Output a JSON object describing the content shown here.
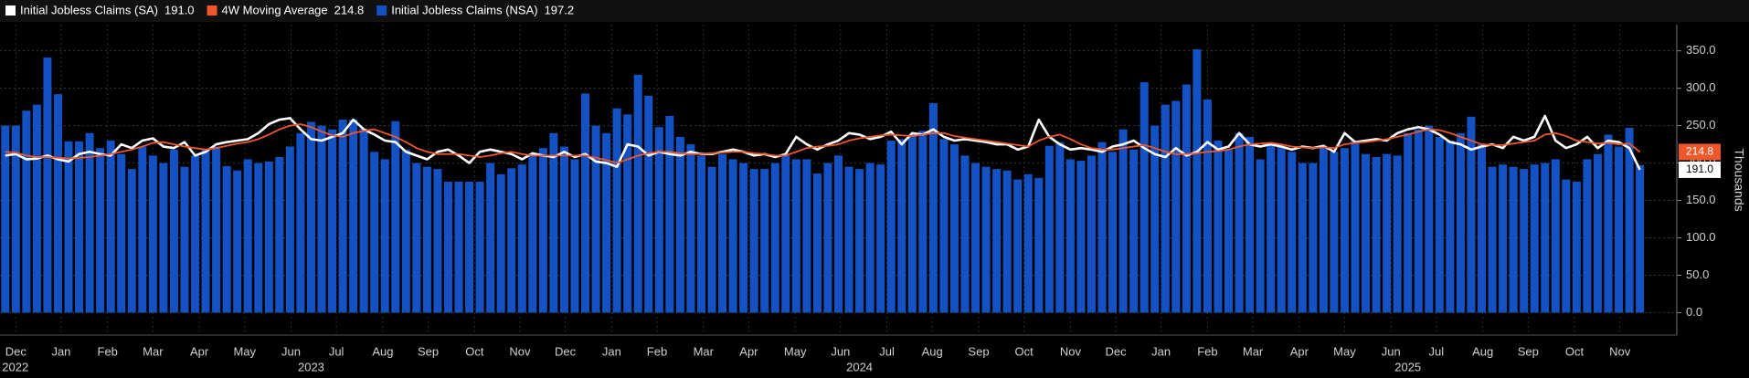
{
  "chart_data": {
    "type": "bar",
    "y_axis_label": "Thousands",
    "ylim": [
      -30,
      385
    ],
    "yticks": [
      {
        "value": 0,
        "label": "0.0"
      },
      {
        "value": 50,
        "label": "50.0"
      },
      {
        "value": 100,
        "label": "100.0"
      },
      {
        "value": 150,
        "label": "150.0"
      },
      {
        "value": 200,
        "label": "200.0"
      },
      {
        "value": 250,
        "label": "250.0"
      },
      {
        "value": 300,
        "label": "300.0"
      },
      {
        "value": 350,
        "label": "350.0"
      }
    ],
    "xlim": [
      -0.5,
      158.5
    ],
    "xticks": [
      {
        "value": 1,
        "label": "Dec"
      },
      {
        "value": 5.3,
        "label": "Jan"
      },
      {
        "value": 9.7,
        "label": "Feb"
      },
      {
        "value": 14,
        "label": "Mar"
      },
      {
        "value": 18.4,
        "label": "Apr"
      },
      {
        "value": 22.7,
        "label": "May"
      },
      {
        "value": 27.1,
        "label": "Jun"
      },
      {
        "value": 31.4,
        "label": "Jul"
      },
      {
        "value": 35.8,
        "label": "Aug"
      },
      {
        "value": 40.1,
        "label": "Sep"
      },
      {
        "value": 44.5,
        "label": "Oct"
      },
      {
        "value": 48.8,
        "label": "Nov"
      },
      {
        "value": 53.1,
        "label": "Dec"
      },
      {
        "value": 57.5,
        "label": "Jan"
      },
      {
        "value": 61.8,
        "label": "Feb"
      },
      {
        "value": 66.2,
        "label": "Mar"
      },
      {
        "value": 70.5,
        "label": "Apr"
      },
      {
        "value": 74.9,
        "label": "May"
      },
      {
        "value": 79.2,
        "label": "Jun"
      },
      {
        "value": 83.6,
        "label": "Jul"
      },
      {
        "value": 87.9,
        "label": "Aug"
      },
      {
        "value": 92.3,
        "label": "Sep"
      },
      {
        "value": 96.6,
        "label": "Oct"
      },
      {
        "value": 101,
        "label": "Nov"
      },
      {
        "value": 105.3,
        "label": "Dec"
      },
      {
        "value": 109.6,
        "label": "Jan"
      },
      {
        "value": 114,
        "label": "Feb"
      },
      {
        "value": 118.3,
        "label": "Mar"
      },
      {
        "value": 122.7,
        "label": "Apr"
      },
      {
        "value": 127,
        "label": "May"
      },
      {
        "value": 131.4,
        "label": "Jun"
      },
      {
        "value": 135.7,
        "label": "Jul"
      },
      {
        "value": 140.1,
        "label": "Aug"
      },
      {
        "value": 144.4,
        "label": "Sep"
      },
      {
        "value": 148.8,
        "label": "Oct"
      },
      {
        "value": 153.1,
        "label": "Nov"
      }
    ],
    "year_ticks": [
      {
        "value": -0.3,
        "label": "2022"
      },
      {
        "value": 29,
        "label": "2023"
      },
      {
        "value": 81,
        "label": "2024"
      },
      {
        "value": 133,
        "label": "2025"
      }
    ],
    "grid": true,
    "series": [
      {
        "name": "Initial Jobless Claims (SA)",
        "color": "#ffffff",
        "kind": "line",
        "last_label": "191.0",
        "values": [
          210,
          212,
          205,
          206,
          210,
          205,
          202,
          212,
          215,
          212,
          210,
          225,
          220,
          230,
          233,
          222,
          220,
          228,
          210,
          215,
          225,
          228,
          230,
          232,
          240,
          252,
          258,
          260,
          245,
          232,
          230,
          235,
          240,
          258,
          245,
          238,
          230,
          228,
          215,
          210,
          205,
          215,
          218,
          210,
          200,
          215,
          218,
          215,
          212,
          205,
          213,
          210,
          208,
          215,
          208,
          212,
          202,
          200,
          195,
          225,
          222,
          210,
          215,
          212,
          210,
          215,
          212,
          212,
          215,
          218,
          215,
          210,
          212,
          208,
          212,
          235,
          225,
          218,
          225,
          230,
          240,
          238,
          232,
          235,
          242,
          225,
          240,
          238,
          245,
          235,
          230,
          232,
          230,
          228,
          225,
          225,
          218,
          222,
          258,
          235,
          225,
          218,
          220,
          218,
          215,
          222,
          225,
          230,
          220,
          212,
          208,
          220,
          210,
          215,
          228,
          218,
          222,
          240,
          225,
          222,
          225,
          222,
          218,
          222,
          220,
          223,
          215,
          240,
          228,
          230,
          232,
          230,
          240,
          245,
          248,
          245,
          238,
          228,
          225,
          218,
          222,
          225,
          220,
          235,
          230,
          235,
          263,
          230,
          220,
          225,
          235,
          220,
          230,
          228,
          220,
          191
        ]
      },
      {
        "name": "4W Moving Average",
        "color": "#f0572b",
        "kind": "line",
        "last_label": "214.8",
        "values": [
          215,
          214,
          210,
          208,
          208,
          207,
          206,
          207,
          208,
          210,
          212,
          215,
          218,
          222,
          227,
          228,
          225,
          222,
          220,
          218,
          220,
          223,
          226,
          228,
          232,
          238,
          245,
          250,
          252,
          248,
          242,
          237,
          235,
          240,
          243,
          245,
          240,
          235,
          228,
          220,
          215,
          212,
          212,
          212,
          210,
          208,
          210,
          213,
          215,
          212,
          210,
          210,
          210,
          210,
          210,
          210,
          207,
          204,
          200,
          205,
          210,
          213,
          215,
          215,
          213,
          212,
          212,
          213,
          214,
          215,
          215,
          213,
          212,
          210,
          210,
          215,
          220,
          222,
          223,
          225,
          230,
          233,
          235,
          237,
          238,
          237,
          236,
          238,
          240,
          240,
          236,
          234,
          232,
          230,
          228,
          226,
          224,
          222,
          230,
          235,
          238,
          232,
          225,
          220,
          218,
          218,
          220,
          222,
          224,
          220,
          215,
          212,
          212,
          213,
          215,
          216,
          218,
          222,
          225,
          226,
          227,
          225,
          222,
          221,
          220,
          221,
          220,
          225,
          227,
          228,
          230,
          232,
          235,
          238,
          242,
          245,
          244,
          240,
          235,
          230,
          225,
          224,
          224,
          226,
          228,
          230,
          238,
          240,
          236,
          230,
          228,
          226,
          227,
          225,
          226,
          214.8
        ]
      },
      {
        "name": "Initial Jobless Claims (NSA)",
        "color": "#1452c4",
        "kind": "bar",
        "last_label": "197.2",
        "values": [
          250,
          250,
          270,
          278,
          341,
          292,
          229,
          229,
          240,
          220,
          230,
          212,
          192,
          222,
          210,
          200,
          218,
          195,
          210,
          218,
          222,
          196,
          190,
          205,
          200,
          202,
          208,
          222,
          240,
          255,
          250,
          245,
          258,
          258,
          246,
          215,
          205,
          256,
          218,
          200,
          195,
          192,
          175,
          175,
          175,
          175,
          200,
          185,
          193,
          198,
          210,
          220,
          240,
          222,
          205,
          293,
          250,
          240,
          273,
          265,
          318,
          290,
          248,
          263,
          235,
          225,
          210,
          195,
          212,
          205,
          200,
          192,
          192,
          200,
          210,
          205,
          205,
          186,
          200,
          210,
          195,
          192,
          200,
          198,
          230,
          232,
          238,
          243,
          280,
          232,
          225,
          210,
          200,
          195,
          192,
          190,
          178,
          185,
          180,
          223,
          228,
          205,
          203,
          210,
          228,
          215,
          245,
          218,
          308,
          250,
          278,
          283,
          305,
          352,
          285,
          230,
          218,
          240,
          235,
          205,
          225,
          222,
          215,
          200,
          200,
          222,
          215,
          220,
          230,
          212,
          208,
          212,
          210,
          240,
          245,
          250,
          235,
          230,
          240,
          262,
          225,
          195,
          198,
          195,
          192,
          198,
          200,
          205,
          178,
          175,
          205,
          212,
          238,
          222,
          247,
          197.2
        ]
      }
    ]
  }
}
